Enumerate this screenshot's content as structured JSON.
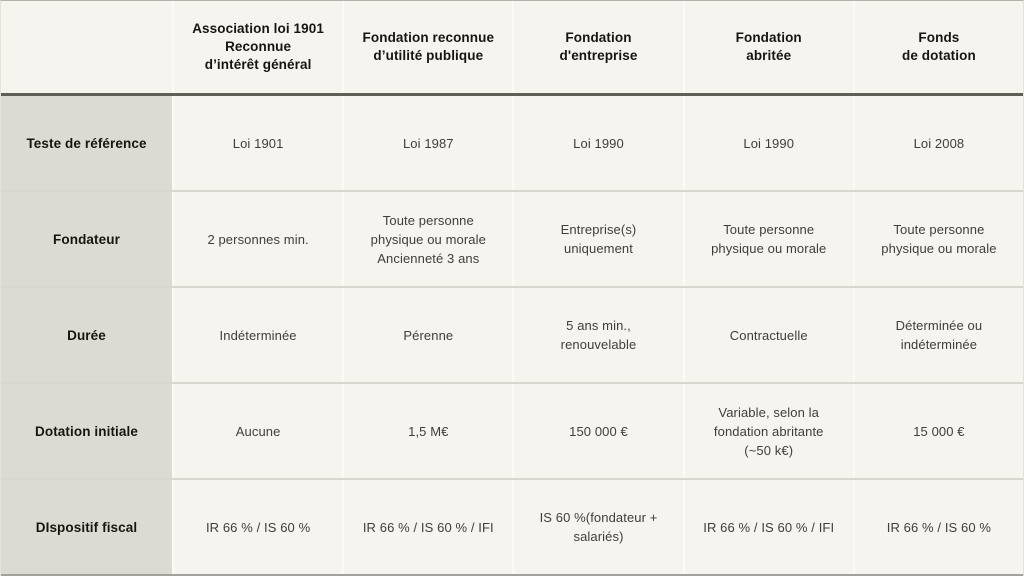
{
  "theme": {
    "cell_background": "#f5f4ee",
    "label_column_background": "#dcdbd3",
    "header_rule_color": "#5f5e57",
    "row_rule_color": "#d8d6cf",
    "column_rule_color": "#fbfaf6",
    "heading_text_color": "#161512",
    "body_text_color": "#3f3e3a"
  },
  "table": {
    "corner_label": "",
    "column_headers": [
      "Association loi 1901\nReconnue\nd’intérêt général",
      "Fondation reconnue\nd’utilité publique",
      "Fondation\nd'entreprise",
      "Fondation\nabritée",
      "Fonds\nde dotation"
    ],
    "rows": [
      {
        "label": "Teste de référence",
        "cells": [
          "Loi 1901",
          "Loi 1987",
          "Loi 1990",
          "Loi 1990",
          "Loi 2008"
        ]
      },
      {
        "label": "Fondateur",
        "cells": [
          "2 personnes min.",
          "Toute personne\nphysique ou morale\nAncienneté 3 ans",
          "Entreprise(s)\nuniquement",
          "Toute personne\nphysique ou morale",
          "Toute personne\nphysique ou morale"
        ]
      },
      {
        "label": "Durée",
        "cells": [
          "Indéterminée",
          "Pérenne",
          "5 ans min.,\nrenouvelable",
          "Contractuelle",
          "Déterminée ou\nindéterminée"
        ]
      },
      {
        "label": "Dotation initiale",
        "cells": [
          "Aucune",
          "1,5 M€",
          "150 000 €",
          "Variable, selon la\nfondation abritante\n(~50 k€)",
          "15 000 €"
        ]
      },
      {
        "label": "DIspositif fiscal",
        "cells": [
          "IR 66 % / IS 60 %",
          "IR 66 % / IS 60 % / IFI",
          "IS 60 %(fondateur +\nsalariés)",
          "IR 66 % / IS 60 % / IFI",
          "IR 66 % / IS 60 %"
        ]
      }
    ]
  }
}
